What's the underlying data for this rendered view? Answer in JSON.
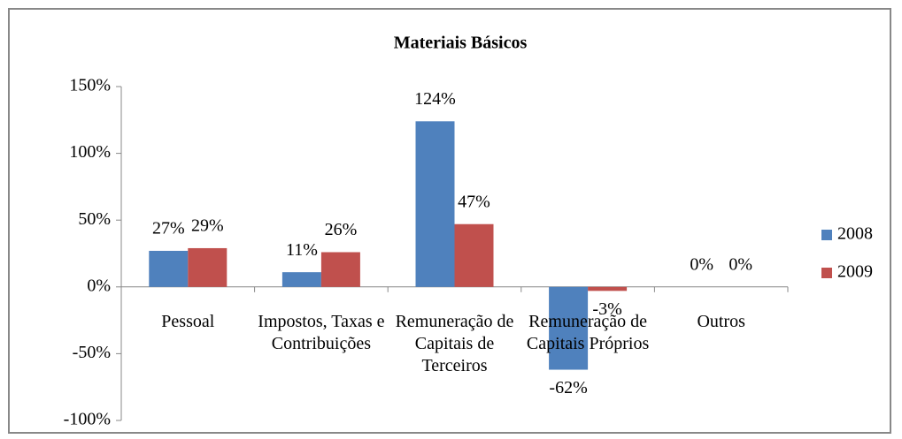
{
  "chart_data": {
    "type": "bar",
    "title": "Materiais Básicos",
    "categories": [
      "Pessoal",
      "Impostos, Taxas e Contribuições",
      "Remuneração de Capitais de Terceiros",
      "Remuneração de Capitais Próprios",
      "Outros"
    ],
    "series": [
      {
        "name": "2008",
        "color": "#4f81bd",
        "values": [
          27,
          11,
          124,
          -62,
          0
        ],
        "value_labels": [
          "27%",
          "11%",
          "124%",
          "-62%",
          "0%"
        ]
      },
      {
        "name": "2009",
        "color": "#c0504d",
        "values": [
          29,
          26,
          47,
          -3,
          0
        ],
        "value_labels": [
          "29%",
          "26%",
          "47%",
          "-3%",
          "0%"
        ]
      }
    ],
    "ylim": [
      -100,
      150
    ],
    "yticks": [
      {
        "value": -100,
        "label": "-100%"
      },
      {
        "value": -50,
        "label": "-50%"
      },
      {
        "value": 0,
        "label": "0%"
      },
      {
        "value": 50,
        "label": "50%"
      },
      {
        "value": 100,
        "label": "100%"
      },
      {
        "value": 150,
        "label": "150%"
      }
    ],
    "legend": "right"
  }
}
